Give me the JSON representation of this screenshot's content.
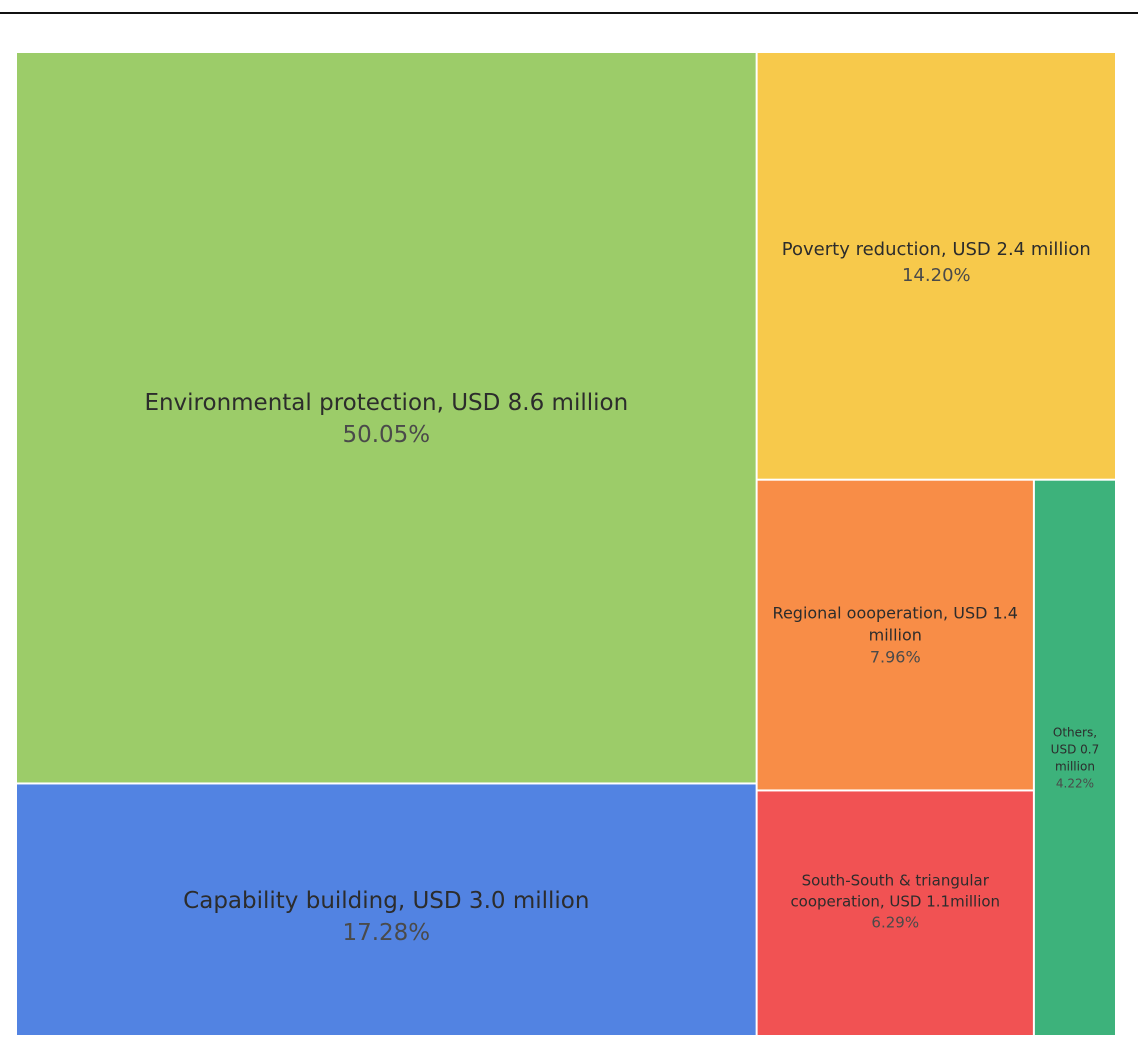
{
  "chart_data": {
    "type": "treemap",
    "title": "",
    "unit": "USD million",
    "items": [
      {
        "name": "Environmental protection",
        "amount_usd_million": 8.6,
        "share_percent": 50.05,
        "label_lines": [
          "Environmental protection, USD 8.6 million"
        ],
        "percent_label": "50.05%",
        "color": "#9ccc69"
      },
      {
        "name": "Capability building",
        "amount_usd_million": 3.0,
        "share_percent": 17.28,
        "label_lines": [
          "Capability building, USD 3.0 million"
        ],
        "percent_label": "17.28%",
        "color": "#5283e2"
      },
      {
        "name": "Poverty reduction",
        "amount_usd_million": 2.4,
        "share_percent": 14.2,
        "label_lines": [
          "Poverty reduction, USD 2.4 million"
        ],
        "percent_label": "14.20%",
        "color": "#f7c94b"
      },
      {
        "name": "Regional oooperation",
        "amount_usd_million": 1.4,
        "share_percent": 7.96,
        "label_lines": [
          "Regional oooperation, USD 1.4",
          "million"
        ],
        "percent_label": "7.96%",
        "color": "#f88d47"
      },
      {
        "name": "South-South & triangular cooperation",
        "amount_usd_million": 1.1,
        "share_percent": 6.29,
        "label_lines": [
          "South-South & triangular",
          "cooperation, USD 1.1million"
        ],
        "percent_label": "6.29%",
        "color": "#f15253"
      },
      {
        "name": "Others",
        "amount_usd_million": 0.7,
        "share_percent": 4.22,
        "label_lines": [
          "Others,",
          "USD 0.7",
          "million"
        ],
        "percent_label": "4.22%",
        "color": "#3db27b"
      }
    ]
  }
}
